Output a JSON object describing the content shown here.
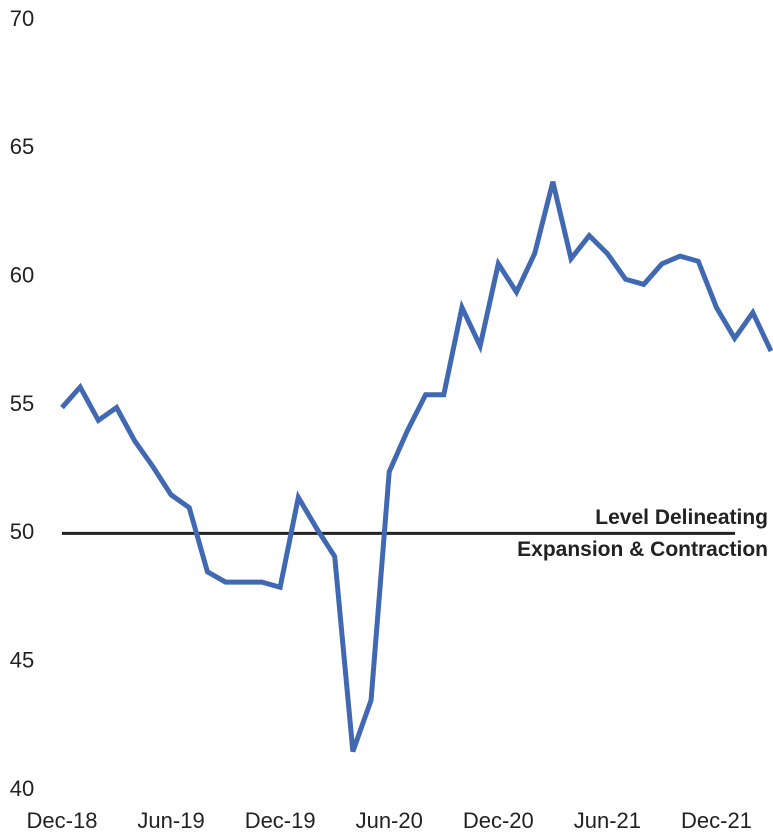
{
  "chart_data": {
    "type": "line",
    "categories": [
      "Dec-18",
      null,
      null,
      null,
      null,
      null,
      "Jun-19",
      null,
      null,
      null,
      null,
      null,
      "Dec-19",
      null,
      null,
      null,
      null,
      null,
      "Jun-20",
      null,
      null,
      null,
      null,
      null,
      "Dec-20",
      null,
      null,
      null,
      null,
      null,
      "Jun-21",
      null,
      null,
      null,
      null,
      null,
      "Dec-21",
      null,
      null,
      null
    ],
    "values": [
      54.9,
      55.7,
      54.4,
      54.9,
      53.6,
      52.6,
      51.5,
      51.0,
      48.5,
      48.1,
      48.1,
      48.1,
      47.9,
      51.4,
      50.2,
      49.1,
      41.5,
      43.5,
      52.4,
      54.0,
      55.4,
      55.4,
      58.8,
      57.3,
      60.5,
      59.4,
      60.9,
      63.7,
      60.7,
      61.6,
      60.9,
      59.9,
      59.7,
      60.5,
      60.8,
      60.6,
      58.8,
      57.6,
      58.6,
      57.1
    ],
    "color": "#4169b2",
    "ylim": [
      40,
      70
    ],
    "yticks": [
      40,
      45,
      50,
      55,
      60,
      65,
      70
    ],
    "reference_line": {
      "value": 50,
      "color": "#222222",
      "label": [
        "Level Delineating",
        "Expansion & Contraction"
      ]
    }
  }
}
